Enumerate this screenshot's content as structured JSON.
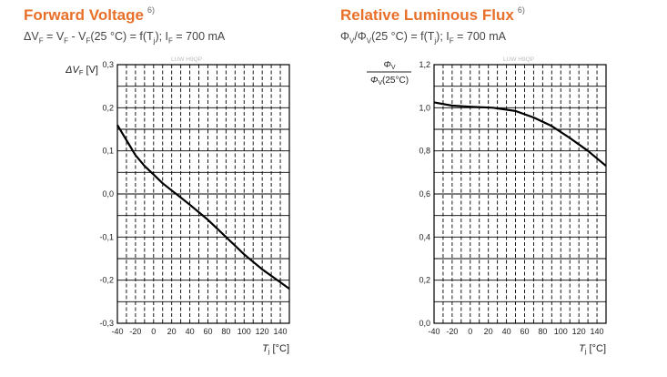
{
  "charts": [
    {
      "title": "Forward Voltage",
      "title_note": "6)",
      "subtitle_parts": {
        "lhs": "ΔV",
        "sub_f": "F",
        "eq_a": " = V",
        "sub_f2": "F",
        "eq_b": " - V",
        "sub_f3": "F",
        "eq_c": "(25 °C) = f(T",
        "sub_j": "j",
        "eq_d": "); I",
        "sub_f4": "F",
        "eq_e": " = 700 mA"
      },
      "watermark": "LUW H9QP",
      "ylabel_main": "ΔV",
      "ylabel_sub": "F",
      "ylabel_unit": " [V]",
      "xlabel_main": "T",
      "xlabel_sub": "j",
      "xlabel_unit": " [°C]"
    },
    {
      "title": "Relative Luminous Flux",
      "title_note": "6)",
      "subtitle_parts": {
        "lhs": "Φ",
        "sub_v": "V",
        "eq_a": "/Φ",
        "sub_v2": "V",
        "eq_b": "(25 °C) = f(T",
        "sub_j": "j",
        "eq_c": "); I",
        "sub_f": "F",
        "eq_d": " = 700 mA"
      },
      "watermark": "LUW H9QP",
      "ylabel_num_main": "Φ",
      "ylabel_num_sub": "V",
      "ylabel_den_main": "Φ",
      "ylabel_den_sub": "V",
      "ylabel_den_rest": "(25°C)",
      "xlabel_main": "T",
      "xlabel_sub": "j",
      "xlabel_unit": " [°C]"
    }
  ],
  "chart_data": [
    {
      "type": "line",
      "xlim": [
        -40,
        150
      ],
      "ylim": [
        -0.3,
        0.3
      ],
      "xticks": [
        -40,
        -20,
        0,
        20,
        40,
        60,
        80,
        100,
        120,
        140
      ],
      "xtick_labels": [
        "-40",
        "-20",
        "0",
        "20",
        "40",
        "60",
        "80",
        "100",
        "120",
        "140"
      ],
      "yticks": [
        -0.3,
        -0.2,
        -0.1,
        0.0,
        0.1,
        0.2,
        0.3
      ],
      "ytick_labels": [
        "-0,3",
        "-0,2",
        "-0,1",
        "0,0",
        "0,1",
        "0,2",
        "0,3"
      ],
      "grid": true,
      "series": [
        {
          "x": [
            -40,
            -30,
            -20,
            -10,
            0,
            10,
            20,
            25,
            40,
            60,
            80,
            100,
            120,
            140,
            150
          ],
          "y": [
            0.16,
            0.125,
            0.09,
            0.065,
            0.045,
            0.025,
            0.008,
            0.0,
            -0.025,
            -0.06,
            -0.1,
            -0.14,
            -0.175,
            -0.205,
            -0.22
          ]
        }
      ]
    },
    {
      "type": "line",
      "xlim": [
        -40,
        150
      ],
      "ylim": [
        0.0,
        1.2
      ],
      "xticks": [
        -40,
        -20,
        0,
        20,
        40,
        60,
        80,
        100,
        120,
        140
      ],
      "xtick_labels": [
        "-40",
        "-20",
        "0",
        "20",
        "40",
        "60",
        "80",
        "100",
        "120",
        "140"
      ],
      "yticks": [
        0.0,
        0.2,
        0.4,
        0.6,
        0.8,
        1.0,
        1.2
      ],
      "ytick_labels": [
        "0,0",
        "0,2",
        "0,4",
        "0,6",
        "0,8",
        "1,0",
        "1,2"
      ],
      "grid": true,
      "series": [
        {
          "x": [
            -40,
            -20,
            0,
            25,
            50,
            70,
            90,
            110,
            130,
            150
          ],
          "y": [
            1.025,
            1.01,
            1.005,
            1.0,
            0.985,
            0.955,
            0.915,
            0.86,
            0.8,
            0.73
          ]
        }
      ]
    }
  ]
}
